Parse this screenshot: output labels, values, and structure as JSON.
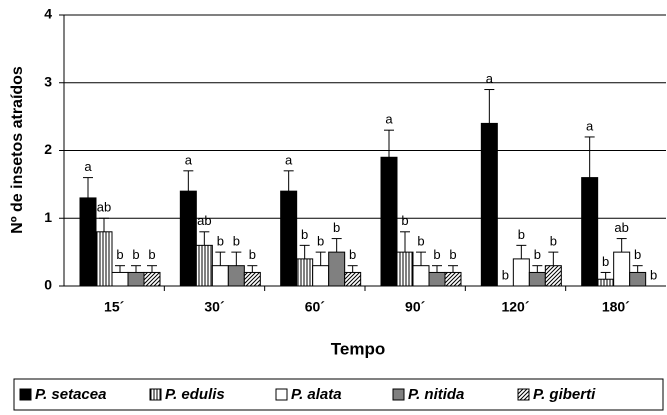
{
  "chart_data": {
    "type": "bar",
    "y_label": "Nº de insetos atraídos",
    "x_label": "Tempo",
    "categories": [
      "15´",
      "30´",
      "60´",
      "90´",
      "120´",
      "180´"
    ],
    "series": [
      {
        "name": "P. setacea",
        "color": "#000000",
        "pattern": "solid",
        "values": [
          1.3,
          1.4,
          1.4,
          1.9,
          2.4,
          1.6
        ],
        "errors": [
          0.3,
          0.3,
          0.3,
          0.4,
          0.5,
          0.6
        ],
        "letters": [
          "a",
          "a",
          "a",
          "a",
          "a",
          "a"
        ]
      },
      {
        "name": "P. edulis",
        "color": "#000000",
        "pattern": "vertical",
        "values": [
          0.8,
          0.6,
          0.4,
          0.5,
          0,
          0.1
        ],
        "errors": [
          0.2,
          0.2,
          0.2,
          0.3,
          0,
          0.1
        ],
        "letters": [
          "ab",
          "ab",
          "b",
          "b",
          "b",
          "b"
        ]
      },
      {
        "name": "P. alata",
        "color": "#ffffff",
        "pattern": "solid",
        "values": [
          0.2,
          0.3,
          0.3,
          0.3,
          0.4,
          0.5
        ],
        "errors": [
          0.1,
          0.2,
          0.2,
          0.2,
          0.2,
          0.2
        ],
        "letters": [
          "b",
          "b",
          "b",
          "b",
          "b",
          "ab"
        ]
      },
      {
        "name": "P. nitida",
        "color": "#808080",
        "pattern": "solid",
        "values": [
          0.2,
          0.3,
          0.5,
          0.2,
          0.2,
          0.2
        ],
        "errors": [
          0.1,
          0.2,
          0.2,
          0.1,
          0.1,
          0.1
        ],
        "letters": [
          "b",
          "b",
          "b",
          "b",
          "b",
          "b"
        ]
      },
      {
        "name": "P. giberti",
        "color": "#000000",
        "pattern": "diagonal",
        "values": [
          0.2,
          0.2,
          0.2,
          0.2,
          0.3,
          0
        ],
        "errors": [
          0.1,
          0.1,
          0.1,
          0.1,
          0.2,
          0
        ],
        "letters": [
          "b",
          "b",
          "b",
          "b",
          "b",
          "b"
        ]
      }
    ],
    "ylim": [
      0,
      4
    ],
    "yticks": [
      0,
      1,
      2,
      3,
      4
    ],
    "grid": true,
    "legend": "bottom"
  }
}
